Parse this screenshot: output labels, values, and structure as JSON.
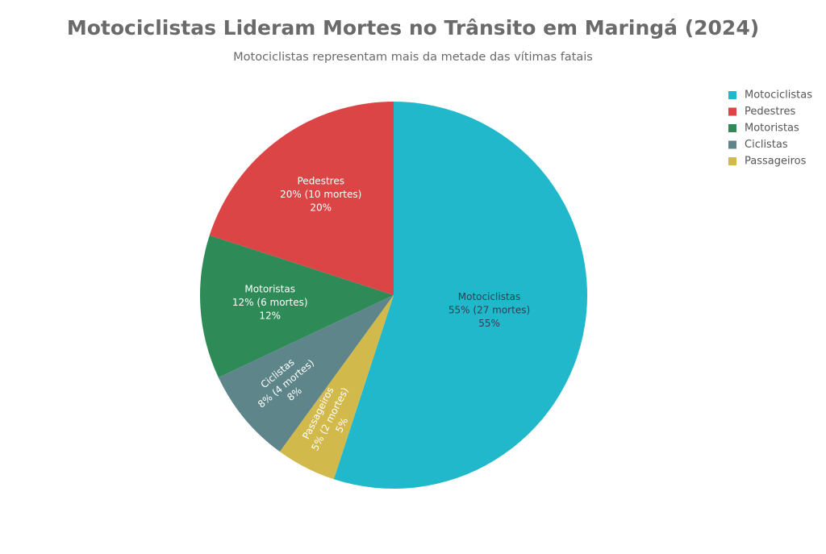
{
  "chart_data": {
    "type": "pie",
    "title": "Motociclistas Lideram Mortes no Trânsito em Maringá (2024)",
    "subtitle": "Motociclistas representam mais da metade das vítimas fatais",
    "categories": [
      "Motociclistas",
      "Pedestres",
      "Motoristas",
      "Ciclistas",
      "Passageiros"
    ],
    "values": [
      55,
      20,
      12,
      8,
      5
    ],
    "slice_labels": [
      "55% (27 mortes)",
      "20% (10 mortes)",
      "12% (6 mortes)",
      "8% (4 mortes)",
      "5% (2 mortes)"
    ],
    "value_labels": [
      "55%",
      "20%",
      "12%",
      "8%",
      "5%"
    ],
    "colors": [
      "#21b8cc",
      "#db4546",
      "#2e8a57",
      "#5e868a",
      "#d2b94b"
    ],
    "legend": "top-right"
  }
}
